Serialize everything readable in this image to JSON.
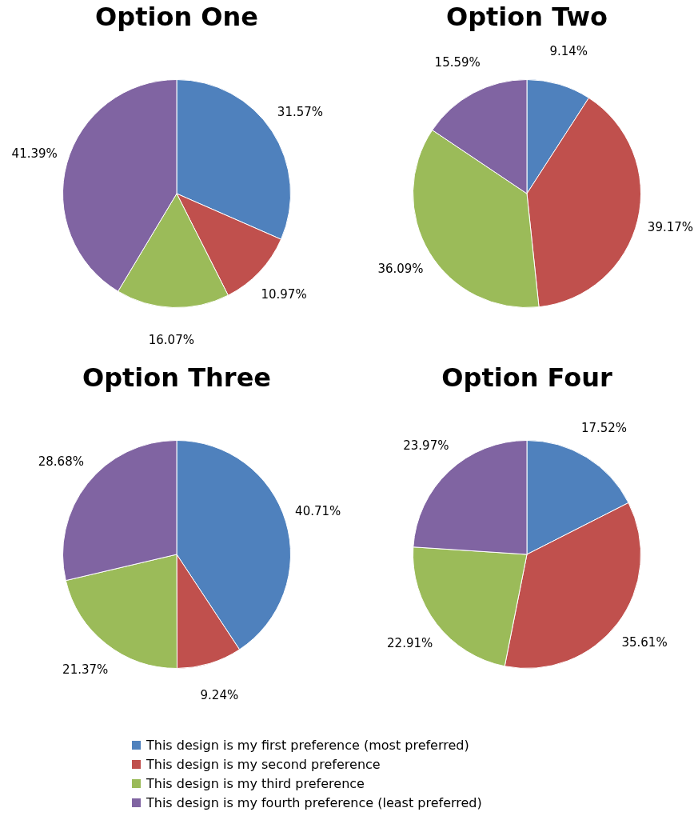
{
  "chart_data": [
    {
      "type": "pie",
      "title": "Option One",
      "categories": [
        null,
        null,
        null,
        null
      ],
      "values": [
        31.57,
        10.97,
        16.07,
        41.39
      ],
      "value_labels": [
        "31.57%",
        "10.97%",
        "16.07%",
        "41.39%"
      ],
      "colors": [
        "#4f81bd",
        "#c0504d",
        "#9bbb59",
        "#8064a2"
      ]
    },
    {
      "type": "pie",
      "title": "Option Two",
      "categories": [
        null,
        null,
        null,
        null
      ],
      "values": [
        9.14,
        39.17,
        36.09,
        15.59
      ],
      "value_labels": [
        "9.14%",
        "39.17%",
        "36.09%",
        "15.59%"
      ],
      "colors": [
        "#4f81bd",
        "#c0504d",
        "#9bbb59",
        "#8064a2"
      ]
    },
    {
      "type": "pie",
      "title": "Option Three",
      "categories": [
        null,
        null,
        null,
        null
      ],
      "values": [
        40.71,
        9.24,
        21.37,
        28.68
      ],
      "value_labels": [
        "40.71%",
        "9.24%",
        "21.37%",
        "28.68%"
      ],
      "colors": [
        "#4f81bd",
        "#c0504d",
        "#9bbb59",
        "#8064a2"
      ]
    },
    {
      "type": "pie",
      "title": "Option Four",
      "categories": [
        "This design is my first preference (most preferred)",
        "This design is my second preference",
        "This design is my third preference",
        "This design is my fourth preference (least preferred)"
      ],
      "values": [
        17.52,
        35.61,
        22.91,
        23.97
      ],
      "value_labels": [
        "17.52%",
        "35.61%",
        "22.91%",
        "23.97%"
      ],
      "colors": [
        "#4f81bd",
        "#c0504d",
        "#9bbb59",
        "#8064a2"
      ],
      "legend": "bottom"
    }
  ]
}
